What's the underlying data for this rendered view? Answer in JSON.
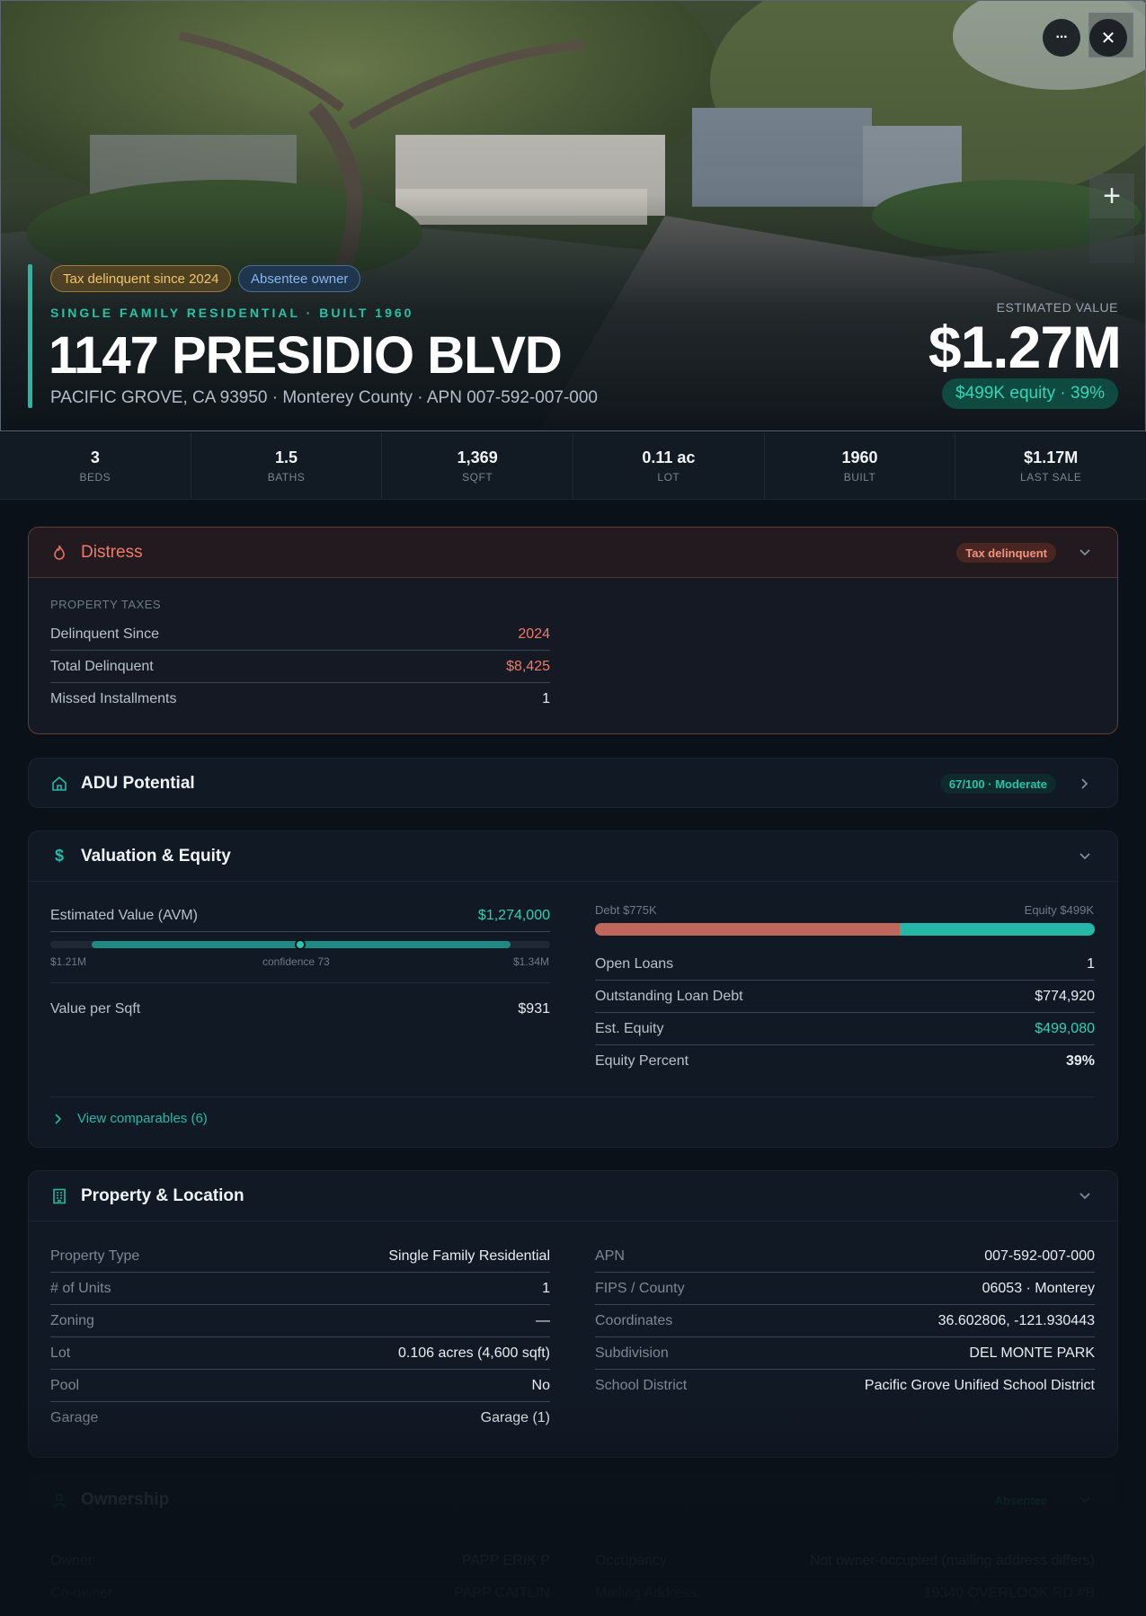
{
  "hero": {
    "chips": {
      "tax": "Tax delinquent since 2024",
      "owner": "Absentee owner"
    },
    "property_type": "SINGLE FAMILY RESIDENTIAL · BUILT 1960",
    "address": "1147 PRESIDIO BLVD",
    "subaddress": "PACIFIC GROVE, CA 93950 · Monterey County · APN 007-592-007-000",
    "estimated_label": "ESTIMATED VALUE",
    "estimated_value": "$1.27M",
    "equity_pill": "$499K equity · 39%",
    "more_glyph": "···",
    "close_glyph": "✕",
    "zoom_glyph": "+"
  },
  "stats": [
    {
      "value": "3",
      "label": "BEDS"
    },
    {
      "value": "1.5",
      "label": "BATHS"
    },
    {
      "value": "1,369",
      "label": "SQFT"
    },
    {
      "value": "0.11 ac",
      "label": "LOT"
    },
    {
      "value": "1960",
      "label": "BUILT"
    },
    {
      "value": "$1.17M",
      "label": "LAST SALE"
    }
  ],
  "distress": {
    "title": "Distress",
    "badge": "Tax delinquent",
    "section": "PROPERTY TAXES",
    "rows": [
      {
        "k": "Delinquent Since",
        "v": "2024"
      },
      {
        "k": "Total Delinquent",
        "v": "$8,425"
      },
      {
        "k": "Missed Installments",
        "v": "1"
      }
    ]
  },
  "adu": {
    "title": "ADU Potential",
    "badge": "67/100 · Moderate"
  },
  "valuation": {
    "title": "Valuation & Equity",
    "avm_label": "Estimated Value (AVM)",
    "avm_value": "$1,274,000",
    "range_low": "$1.21M",
    "range_high": "$1.34M",
    "confidence": "confidence 73",
    "vps_label": "Value per Sqft",
    "vps_value": "$931",
    "debt_label": "Debt $775K",
    "equity_label": "Equity $499K",
    "debt_fraction": 0.61,
    "rows": [
      {
        "k": "Open Loans",
        "v": "1"
      },
      {
        "k": "Outstanding Loan Debt",
        "v": "$774,920"
      },
      {
        "k": "Est. Equity",
        "v": "$499,080"
      },
      {
        "k": "Equity Percent",
        "v": "39%"
      }
    ],
    "link": "View comparables (6)"
  },
  "property": {
    "title": "Property & Location",
    "left": [
      {
        "k": "Property Type",
        "v": "Single Family Residential"
      },
      {
        "k": "# of Units",
        "v": "1"
      },
      {
        "k": "Zoning",
        "v": "—"
      },
      {
        "k": "Lot",
        "v": "0.106 acres (4,600 sqft)"
      },
      {
        "k": "Pool",
        "v": "No"
      },
      {
        "k": "Garage",
        "v": "Garage (1)"
      }
    ],
    "right": [
      {
        "k": "APN",
        "v": "007-592-007-000"
      },
      {
        "k": "FIPS / County",
        "v": "06053 · Monterey"
      },
      {
        "k": "Coordinates",
        "v": "36.602806, -121.930443"
      },
      {
        "k": "Subdivision",
        "v": "DEL MONTE PARK"
      },
      {
        "k": "School District",
        "v": "Pacific Grove Unified School District"
      }
    ]
  },
  "ownership": {
    "title": "Ownership",
    "badge": "Absentee",
    "left": [
      {
        "k": "Owner",
        "v": "PAPP ERIK P"
      },
      {
        "k": "Co-owner",
        "v": "PAPP CAITLIN"
      }
    ],
    "right": [
      {
        "k": "Occupancy",
        "v": "Not owner-occupied (mailing address differs)"
      },
      {
        "k": "Mailing Address",
        "v": "19340 OVERLOOK RD #B"
      }
    ]
  },
  "colors": {
    "accent": "#25b8a6",
    "danger": "#ef7b67",
    "debt": "#c0675b",
    "background": "#0b1118"
  },
  "icons": {
    "distress": "flame-icon",
    "adu": "house-icon",
    "valuation": "dollar-icon",
    "property": "building-icon",
    "ownership": "person-icon"
  }
}
